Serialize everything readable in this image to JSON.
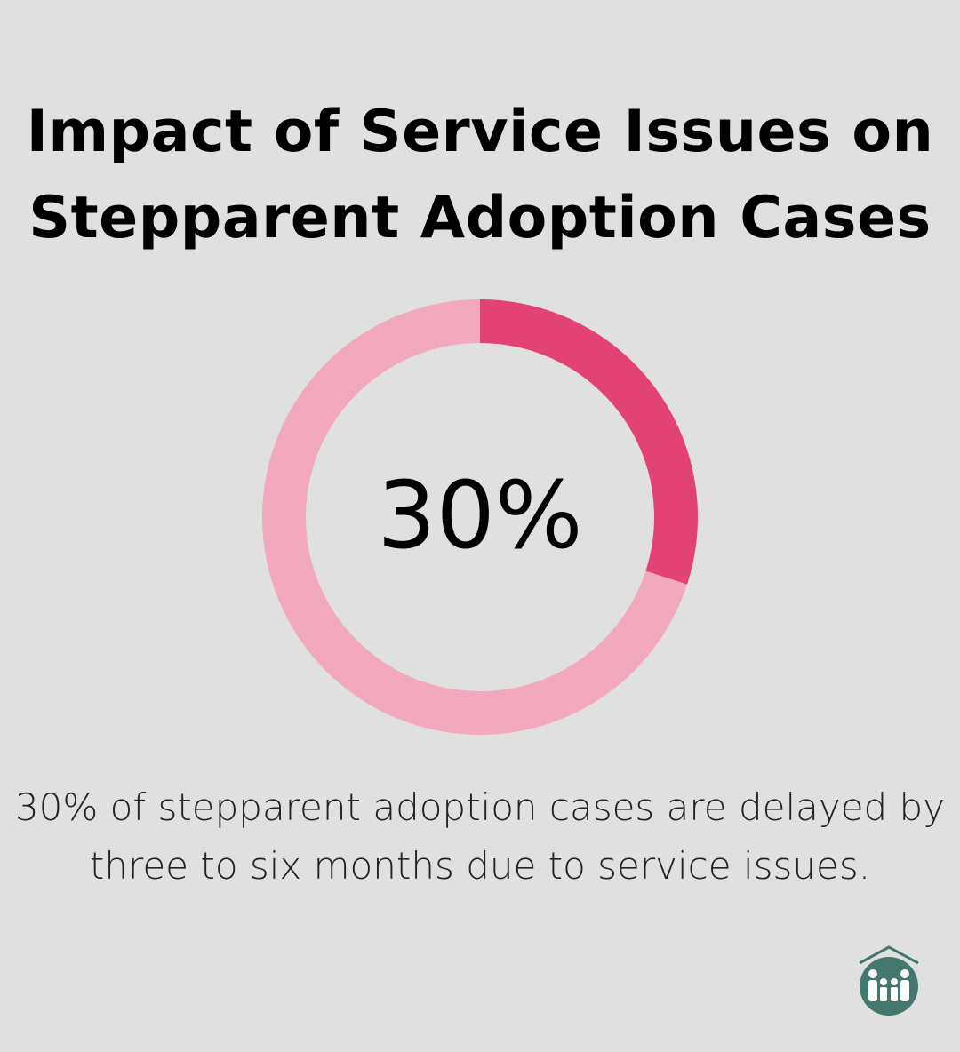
{
  "title": "Impact of Service Issues on Stepparent Adoption Cases",
  "colors": {
    "highlight": "#e34374",
    "remainder": "#f2a8bd",
    "background": "#dfe0df",
    "logo": "#44786f"
  },
  "chart_data": {
    "type": "pie",
    "subtype": "donut",
    "title": "Impact of Service Issues on Stepparent Adoption Cases",
    "categories": [
      "Delayed by 3-6 months",
      "Other"
    ],
    "values": [
      30,
      70
    ],
    "center_label": "30%",
    "caption": "30% of stepparent adoption cases are delayed by three to six months due to service issues."
  },
  "logo": {
    "icon": "house-family-icon"
  }
}
